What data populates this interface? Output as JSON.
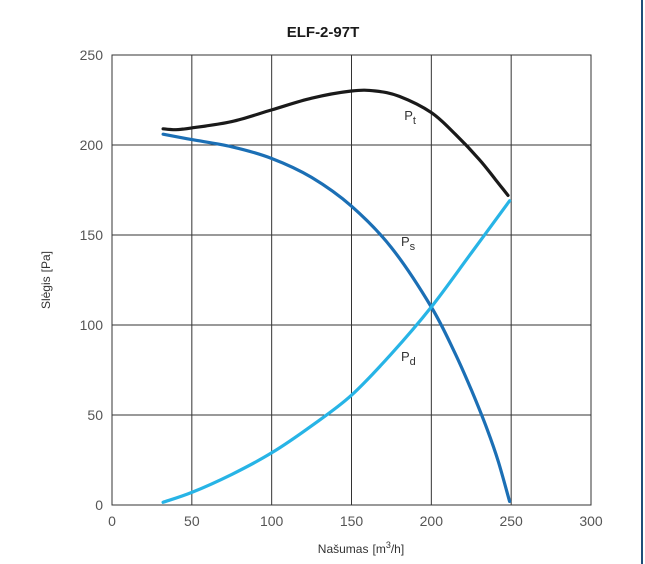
{
  "chart_data": {
    "type": "line",
    "title": "ELF-2-97T",
    "xlabel": "Našumas",
    "xunit_base": "m",
    "xunit_sup": "3",
    "xunit_tail": "/h",
    "ylabel": "Slėgis",
    "yunit": "Pa",
    "xlim": [
      0,
      300
    ],
    "ylim": [
      0,
      250
    ],
    "xticks": [
      0,
      50,
      100,
      150,
      200,
      250,
      300
    ],
    "yticks": [
      0,
      50,
      100,
      150,
      200,
      250
    ],
    "grid": true,
    "series": [
      {
        "name": "P",
        "sub": "t",
        "color": "#1a1a1a",
        "points": [
          [
            32,
            209
          ],
          [
            40,
            208.5
          ],
          [
            50,
            209.5
          ],
          [
            75,
            213
          ],
          [
            100,
            219.5
          ],
          [
            125,
            226
          ],
          [
            150,
            230
          ],
          [
            165,
            230
          ],
          [
            180,
            227
          ],
          [
            200,
            218
          ],
          [
            215,
            206
          ],
          [
            230,
            192
          ],
          [
            240,
            181
          ],
          [
            248,
            172
          ]
        ]
      },
      {
        "name": "P",
        "sub": "s",
        "color": "#1b6fb5",
        "points": [
          [
            32,
            206
          ],
          [
            50,
            203
          ],
          [
            75,
            199
          ],
          [
            100,
            192.5
          ],
          [
            125,
            182
          ],
          [
            150,
            166
          ],
          [
            175,
            143
          ],
          [
            200,
            110
          ],
          [
            215,
            84
          ],
          [
            225,
            64
          ],
          [
            235,
            42
          ],
          [
            242,
            24
          ],
          [
            249,
            2
          ]
        ]
      },
      {
        "name": "P",
        "sub": "d",
        "color": "#27b4e6",
        "points": [
          [
            32,
            1.5
          ],
          [
            50,
            7
          ],
          [
            75,
            17
          ],
          [
            100,
            29
          ],
          [
            125,
            44
          ],
          [
            150,
            61
          ],
          [
            175,
            84
          ],
          [
            200,
            110
          ],
          [
            225,
            140
          ],
          [
            249,
            169
          ]
        ]
      }
    ],
    "series_labels": [
      {
        "text": "P",
        "sub": "t",
        "x": 183,
        "y": 214
      },
      {
        "text": "P",
        "sub": "s",
        "x": 181,
        "y": 144
      },
      {
        "text": "P",
        "sub": "d",
        "x": 181,
        "y": 80
      }
    ]
  }
}
